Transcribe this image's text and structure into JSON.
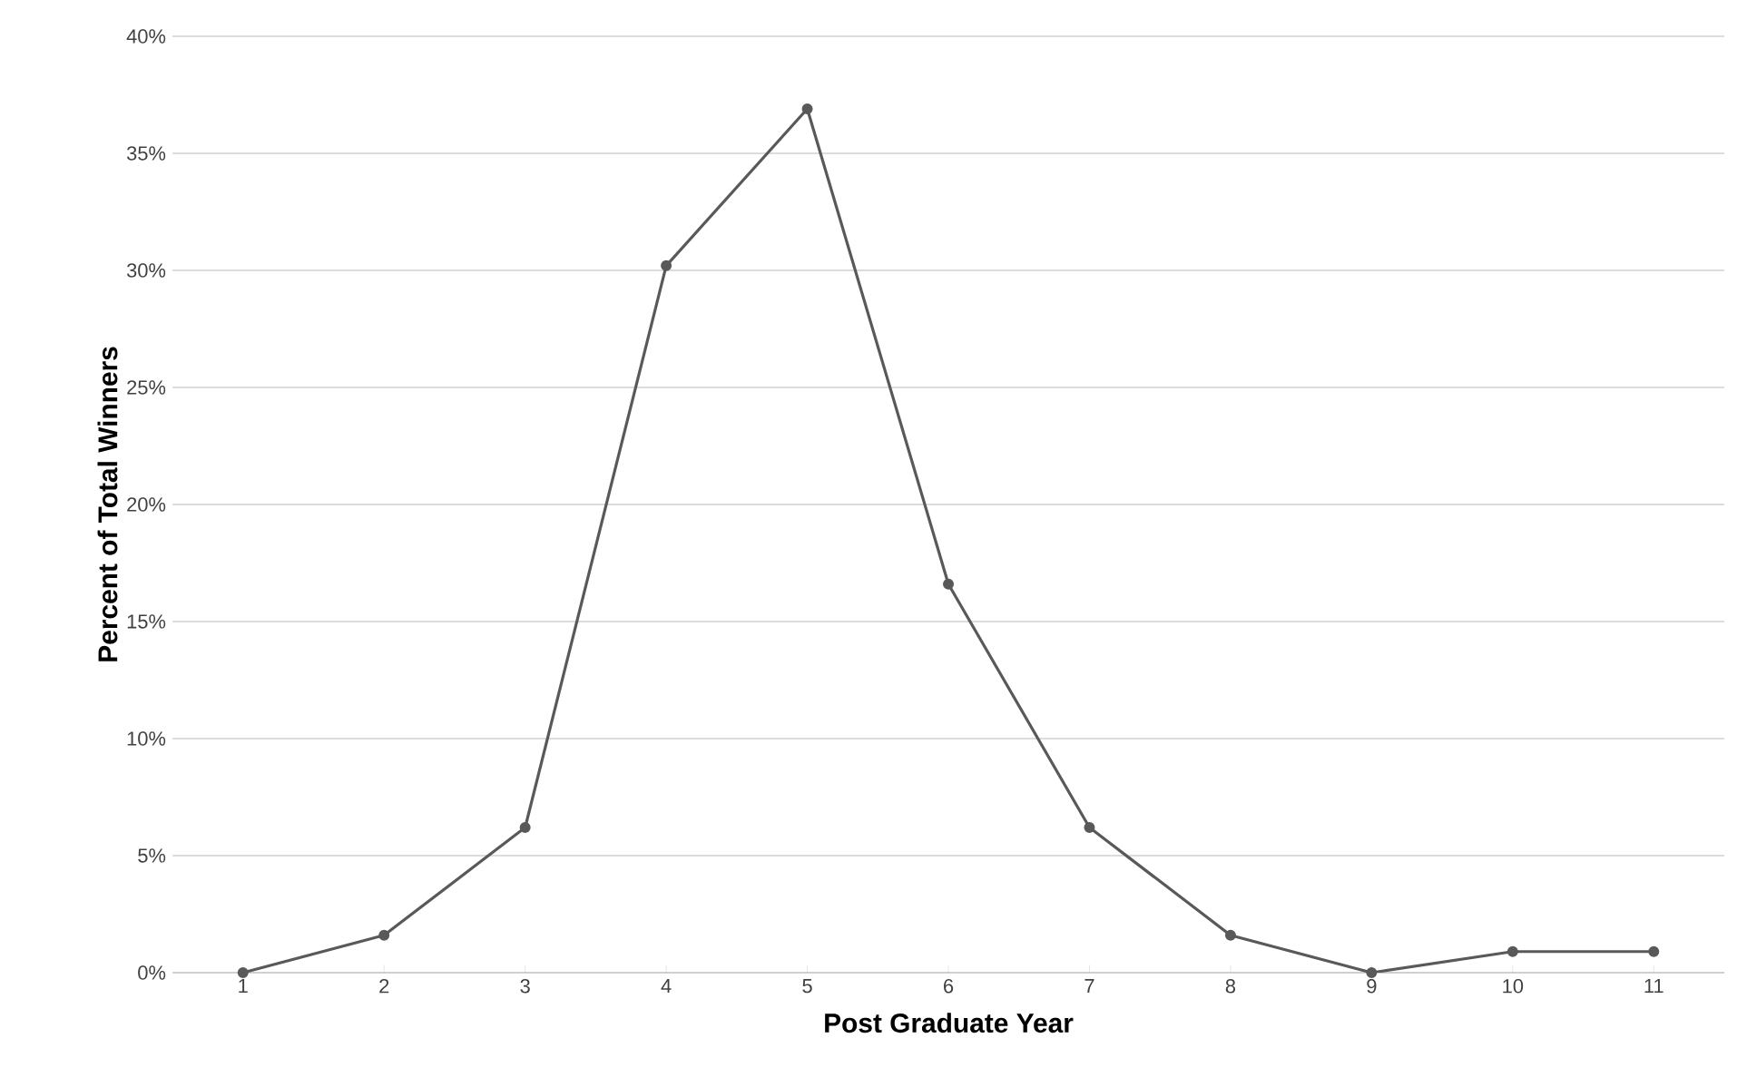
{
  "chart_data": {
    "type": "line",
    "xlabel": "Post Graduate Year",
    "ylabel": "Percent of Total Winners",
    "categories": [
      "1",
      "2",
      "3",
      "4",
      "5",
      "6",
      "7",
      "8",
      "9",
      "10",
      "11"
    ],
    "values": [
      0,
      1.6,
      6.2,
      30.2,
      36.9,
      16.6,
      6.2,
      1.6,
      0,
      0.9,
      0.9
    ],
    "color": "#595959",
    "marker": "circle",
    "line_style": "solid",
    "ylim": [
      0,
      40
    ],
    "yticks": [
      {
        "value": 0,
        "label": "0%"
      },
      {
        "value": 5,
        "label": "5%"
      },
      {
        "value": 10,
        "label": "10%"
      },
      {
        "value": 15,
        "label": "15%"
      },
      {
        "value": 20,
        "label": "20%"
      },
      {
        "value": 25,
        "label": "25%"
      },
      {
        "value": 30,
        "label": "30%"
      },
      {
        "value": 35,
        "label": "35%"
      },
      {
        "value": 40,
        "label": "40%"
      }
    ],
    "grid": "y"
  }
}
